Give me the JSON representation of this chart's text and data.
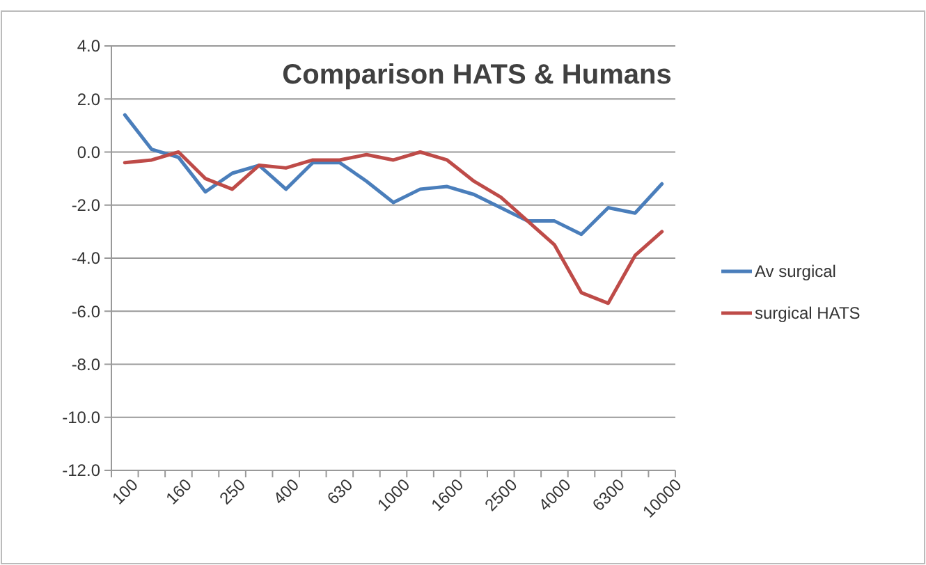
{
  "chart_data": {
    "type": "line",
    "title": "Comparison HATS & Humans",
    "categories": [
      "100",
      null,
      "160",
      null,
      "250",
      null,
      "400",
      null,
      "630",
      null,
      "1000",
      null,
      "1600",
      null,
      "2500",
      null,
      "4000",
      null,
      "6300",
      null,
      "10000"
    ],
    "series": [
      {
        "name": "Av surgical",
        "color": "#4a7ebb",
        "values": [
          1.4,
          0.1,
          -0.2,
          -1.5,
          -0.8,
          -0.5,
          -1.4,
          -0.4,
          -0.4,
          -1.1,
          -1.9,
          -1.4,
          -1.3,
          -1.6,
          -2.1,
          -2.6,
          -2.6,
          -3.1,
          -2.1,
          -2.3,
          -1.2
        ]
      },
      {
        "name": "surgical HATS",
        "color": "#be4b48",
        "values": [
          -0.4,
          -0.3,
          0.0,
          -1.0,
          -1.4,
          -0.5,
          -0.6,
          -0.3,
          -0.3,
          -0.1,
          -0.3,
          0.0,
          -0.3,
          -1.1,
          -1.7,
          -2.6,
          -3.5,
          -5.3,
          -5.7,
          -3.9,
          -3.0
        ]
      }
    ],
    "ylim": [
      -12,
      4
    ],
    "yticks": [
      {
        "value": -12,
        "label": "-12.0"
      },
      {
        "value": -10,
        "label": "-10.0"
      },
      {
        "value": -8,
        "label": "-8.0"
      },
      {
        "value": -6,
        "label": "-6.0"
      },
      {
        "value": -4,
        "label": "-4.0"
      },
      {
        "value": -2,
        "label": "-2.0"
      },
      {
        "value": 0,
        "label": "0.0"
      },
      {
        "value": 2,
        "label": "2.0"
      },
      {
        "value": 4,
        "label": "4.0"
      }
    ],
    "grid": "y",
    "legend": "right",
    "marker": "none",
    "line_style": "solid"
  }
}
